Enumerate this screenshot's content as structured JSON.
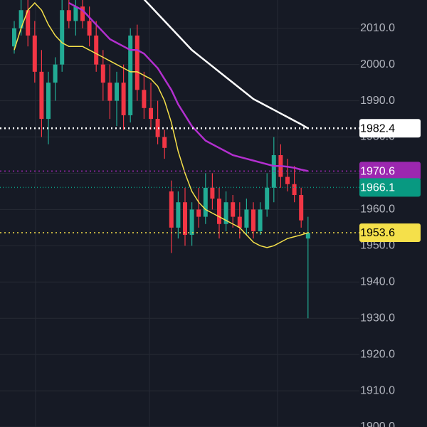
{
  "chart_data": {
    "type": "candlestick",
    "ylim": [
      1900,
      2017.8
    ],
    "yticks": [
      {
        "value": 1900,
        "label": "1900.0"
      },
      {
        "value": 1910,
        "label": "1910.0"
      },
      {
        "value": 1920,
        "label": "1920.0"
      },
      {
        "value": 1930,
        "label": "1930.0"
      },
      {
        "value": 1940,
        "label": "1940.0"
      },
      {
        "value": 1950,
        "label": "1950.0"
      },
      {
        "value": 1960,
        "label": "1960.0"
      },
      {
        "value": 1970,
        "label": "1970.0"
      },
      {
        "value": 1980,
        "label": "1980.0"
      },
      {
        "value": 1990,
        "label": "1990.0"
      },
      {
        "value": 2000,
        "label": "2000.0"
      },
      {
        "value": 2010,
        "label": "2010.0"
      }
    ],
    "grid": true,
    "up_color": "#22ab94",
    "down_color": "#f23645",
    "open": [
      2005,
      2010,
      2015,
      2008,
      1998,
      1985,
      1995,
      2000,
      2015,
      2012,
      2016,
      2012,
      2008,
      2000,
      1995,
      1990,
      1995,
      1986,
      2008,
      1993,
      1988,
      1985,
      1980,
      1965,
      1955,
      1962,
      1953,
      1960,
      1958,
      1966,
      1963,
      1956,
      1962,
      1958,
      1955,
      1960,
      1954,
      1960,
      1966,
      1975,
      1969,
      1967,
      1964,
      1952
    ],
    "high": [
      2012,
      2018,
      2018,
      2012,
      2004,
      1998,
      2002,
      2018,
      2020,
      2018,
      2020,
      2016,
      2012,
      2004,
      2000,
      1998,
      2000,
      2010,
      2011,
      1998,
      1995,
      1990,
      1982,
      1968,
      1965,
      1966,
      1962,
      1966,
      1970,
      1970,
      1966,
      1965,
      1964,
      1962,
      1963,
      1962,
      1962,
      1970,
      1980,
      1978,
      1974,
      1972,
      1966,
      1958
    ],
    "low": [
      2003,
      2008,
      2005,
      1995,
      1980,
      1978,
      1990,
      1998,
      2010,
      2008,
      2010,
      2005,
      1998,
      1990,
      1985,
      1983,
      1982,
      1984,
      1990,
      1985,
      1982,
      1978,
      1974,
      1948,
      1952,
      1950,
      1950,
      1955,
      1956,
      1960,
      1952,
      1954,
      1955,
      1952,
      1953,
      1952,
      1953,
      1958,
      1962,
      1966,
      1965,
      1962,
      1955,
      1930
    ],
    "close": [
      2010,
      2015,
      2008,
      1998,
      1985,
      1995,
      2000,
      2015,
      2012,
      2016,
      2012,
      2008,
      2000,
      1995,
      1990,
      1995,
      1986,
      2008,
      1993,
      1988,
      1985,
      1980,
      1977,
      1955,
      1962,
      1953,
      1960,
      1958,
      1966,
      1963,
      1956,
      1962,
      1958,
      1955,
      1960,
      1954,
      1960,
      1966,
      1975,
      1969,
      1967,
      1964,
      1957,
      1953.6
    ],
    "series": [
      {
        "color": "#f5e04a",
        "values": [
          2004,
          2010,
          2015,
          2017,
          2015,
          2011,
          2008,
          2006,
          2005,
          2005,
          2005,
          2004,
          2003,
          2002,
          2001,
          2000,
          1999,
          1998,
          1998,
          1997,
          1996,
          1994,
          1990,
          1984,
          1976,
          1970,
          1965,
          1962,
          1960,
          1959,
          1958,
          1957,
          1956,
          1955,
          1953,
          1951,
          1950,
          1949.5,
          1950,
          1951,
          1952,
          1952.5,
          1953,
          1953.6
        ]
      },
      {
        "color": "#b32fcf",
        "values": [
          null,
          null,
          null,
          null,
          null,
          null,
          null,
          null,
          2017,
          2016,
          2015,
          2013,
          2011,
          2009,
          2007,
          2006,
          2005,
          2004,
          2004,
          2003,
          2001,
          1999,
          1996,
          1993,
          1989,
          1986,
          1983,
          1981,
          1979,
          1978,
          1977,
          1976,
          1975,
          1974.5,
          1974,
          1973.5,
          1973,
          1972.5,
          1972,
          1972,
          1971.8,
          1971.5,
          1971,
          1970.6
        ]
      },
      {
        "color": "#ffffff",
        "values": [
          null,
          null,
          null,
          null,
          null,
          null,
          null,
          null,
          null,
          null,
          null,
          null,
          null,
          null,
          null,
          null,
          null,
          null,
          null,
          2018,
          2016,
          2014,
          2012,
          2010,
          2008,
          2006,
          2004,
          2002.5,
          2001,
          1999.5,
          1998,
          1996.5,
          1995,
          1993.5,
          1992,
          1990.5,
          1989.5,
          1988.5,
          1987.5,
          1986.5,
          1985.5,
          1984.5,
          1983.5,
          1982.4
        ]
      }
    ],
    "price_lines": [
      {
        "value": 1982.4,
        "color": "#ffffff",
        "text_color": "#000000"
      },
      {
        "value": 1970.6,
        "color": "#9c27b0",
        "text_color": "#ffffff"
      },
      {
        "value": 1966.1,
        "color": "#089981",
        "text_color": "#ffffff"
      },
      {
        "value": 1953.6,
        "color": "#f5e04a",
        "text_color": "#000000"
      }
    ]
  }
}
